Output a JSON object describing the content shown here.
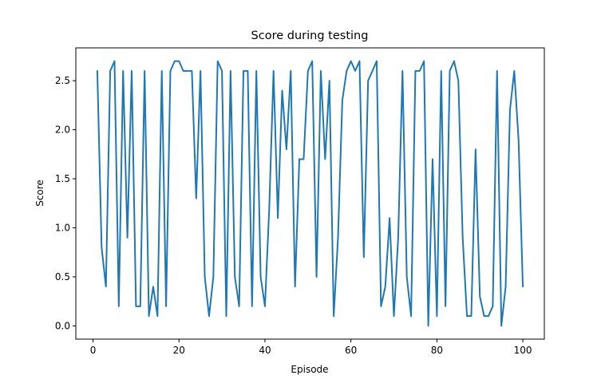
{
  "chart_data": {
    "type": "line",
    "title": "Score during testing",
    "xlabel": "Episode",
    "ylabel": "Score",
    "xlim": [
      -4,
      105
    ],
    "ylim": [
      -0.135,
      2.835
    ],
    "xticks": [
      0,
      20,
      40,
      60,
      80,
      100
    ],
    "yticks": [
      0.0,
      0.5,
      1.0,
      1.5,
      2.0,
      2.5
    ],
    "grid": false,
    "line_color": "#1f77b4",
    "series": [
      {
        "x": [
          1,
          2,
          3,
          4,
          5,
          6,
          7,
          8,
          9,
          10,
          11,
          12,
          13,
          14,
          15,
          16,
          17,
          18,
          19,
          20,
          21,
          22,
          23,
          24,
          25,
          26,
          27,
          28,
          29,
          30,
          31,
          32,
          33,
          34,
          35,
          36,
          37,
          38,
          39,
          40,
          41,
          42,
          43,
          44,
          45,
          46,
          47,
          48,
          49,
          50,
          51,
          52,
          53,
          54,
          55,
          56,
          57,
          58,
          59,
          60,
          61,
          62,
          63,
          64,
          65,
          66,
          67,
          68,
          69,
          70,
          71,
          72,
          73,
          74,
          75,
          76,
          77,
          78,
          79,
          80,
          81,
          82,
          83,
          84,
          85,
          86,
          87,
          88,
          89,
          90,
          91,
          92,
          93,
          94,
          95,
          96,
          97,
          98,
          99,
          100
        ],
        "values": [
          2.6,
          0.8,
          0.4,
          2.6,
          2.7,
          0.2,
          2.6,
          0.9,
          2.6,
          0.2,
          0.2,
          2.6,
          0.1,
          0.4,
          0.1,
          2.6,
          0.2,
          2.6,
          2.7,
          2.7,
          2.6,
          2.6,
          2.6,
          1.3,
          2.6,
          0.5,
          0.1,
          0.5,
          2.7,
          2.6,
          0.1,
          2.6,
          0.5,
          0.2,
          2.6,
          2.6,
          0.2,
          2.6,
          0.5,
          0.2,
          1.2,
          2.6,
          1.1,
          2.4,
          1.8,
          2.6,
          0.4,
          1.7,
          1.7,
          2.6,
          2.7,
          0.5,
          2.6,
          1.7,
          2.5,
          0.1,
          0.9,
          2.3,
          2.6,
          2.7,
          2.6,
          2.7,
          0.7,
          2.5,
          2.6,
          2.7,
          0.2,
          0.4,
          1.1,
          0.1,
          0.9,
          2.6,
          0.5,
          0.1,
          2.6,
          2.6,
          2.7,
          0.0,
          1.7,
          0.1,
          2.6,
          0.2,
          2.6,
          2.7,
          2.5,
          0.9,
          0.1,
          0.1,
          1.8,
          0.3,
          0.1,
          0.1,
          0.2,
          2.6,
          0.0,
          0.4,
          2.2,
          2.6,
          1.9,
          0.4
        ]
      }
    ]
  }
}
